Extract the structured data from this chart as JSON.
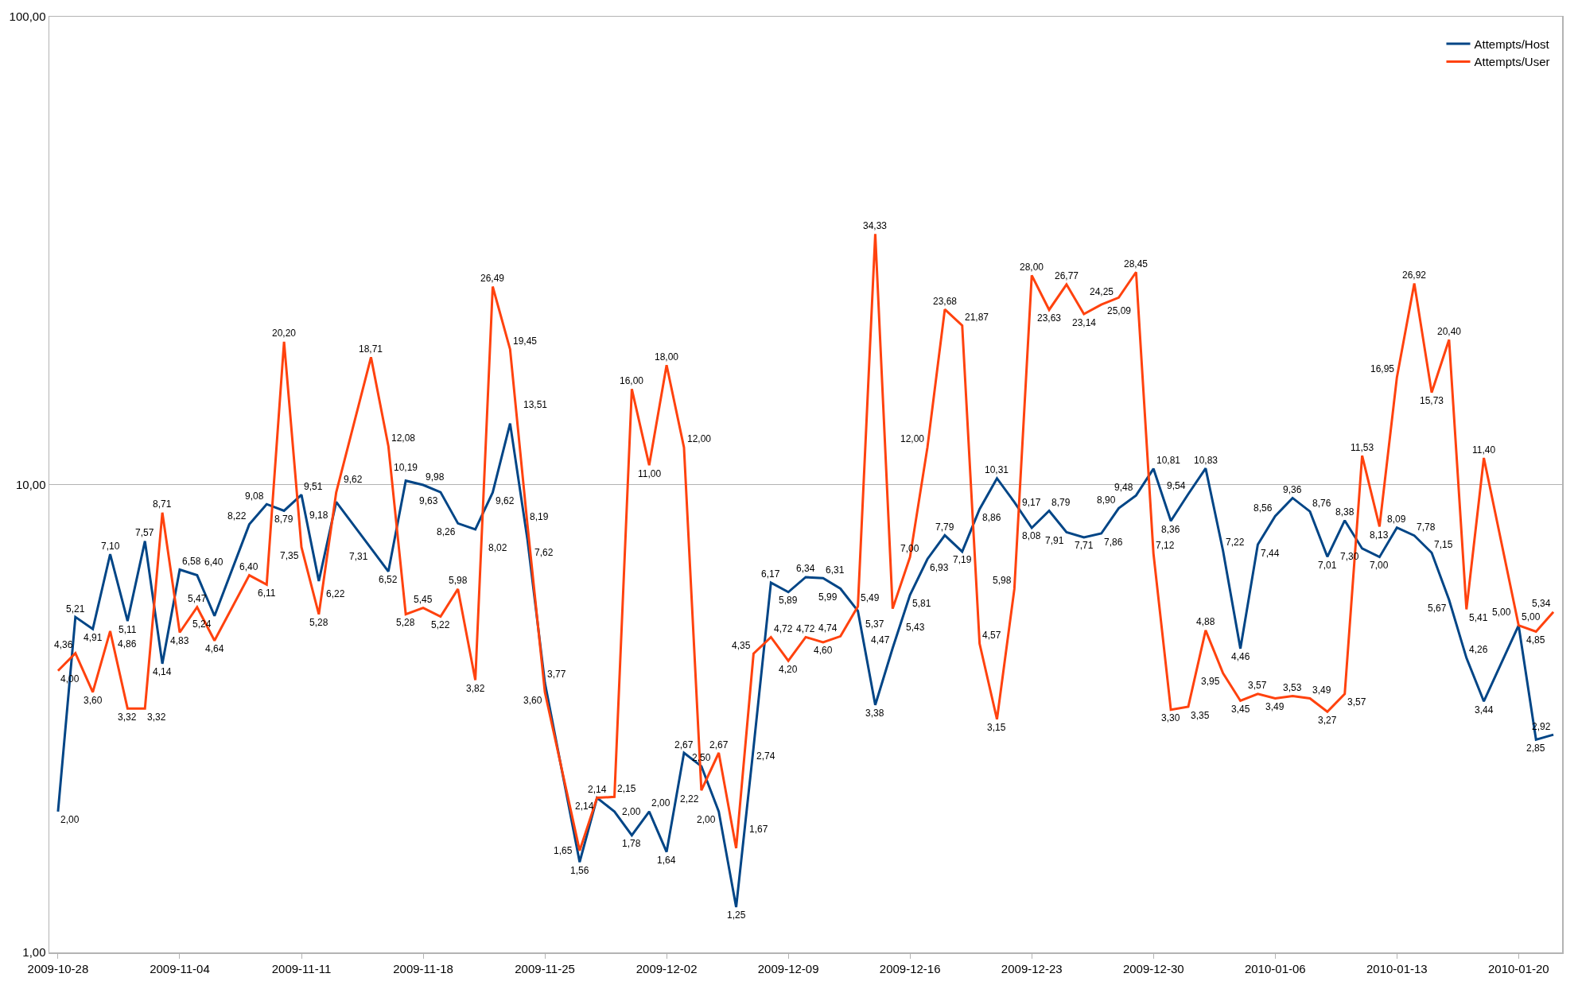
{
  "chart_data": {
    "type": "line",
    "log": "y",
    "grid": "y",
    "legend": "top right",
    "x": [
      "2009-10-28",
      "2009-10-29",
      "2009-10-30",
      "2009-10-31",
      "2009-11-01",
      "2009-11-02",
      "2009-11-03",
      "2009-11-04",
      "2009-11-05",
      "2009-11-06",
      "2009-11-08",
      "2009-11-09",
      "2009-11-10",
      "2009-11-11",
      "2009-11-12",
      "2009-11-13",
      "2009-11-15",
      "2009-11-16",
      "2009-11-17",
      "2009-11-18",
      "2009-11-19",
      "2009-11-20",
      "2009-11-21",
      "2009-11-22",
      "2009-11-23",
      "2009-11-24",
      "2009-11-25",
      "2009-11-27",
      "2009-11-28",
      "2009-11-29",
      "2009-11-30",
      "2009-12-01",
      "2009-12-02",
      "2009-12-03",
      "2009-12-04",
      "2009-12-05",
      "2009-12-06",
      "2009-12-07",
      "2009-12-08",
      "2009-12-09",
      "2009-12-10",
      "2009-12-11",
      "2009-12-12",
      "2009-12-13",
      "2009-12-14",
      "2009-12-15",
      "2009-12-16",
      "2009-12-17",
      "2009-12-18",
      "2009-12-19",
      "2009-12-20",
      "2009-12-21",
      "2009-12-22",
      "2009-12-23",
      "2009-12-24",
      "2009-12-25",
      "2009-12-26",
      "2009-12-27",
      "2009-12-28",
      "2009-12-29",
      "2009-12-30",
      "2009-12-31",
      "2010-01-01",
      "2010-01-02",
      "2010-01-03",
      "2010-01-04",
      "2010-01-05",
      "2010-01-06",
      "2010-01-07",
      "2010-01-08",
      "2010-01-09",
      "2010-01-10",
      "2010-01-11",
      "2010-01-12",
      "2010-01-13",
      "2010-01-14",
      "2010-01-15",
      "2010-01-16",
      "2010-01-17",
      "2010-01-18",
      "2010-01-20",
      "2010-01-21",
      "2010-01-22"
    ],
    "series": [
      {
        "name": "Attempts/Host",
        "color": "#004586",
        "values": [
          2.0,
          5.21,
          4.91,
          7.1,
          5.11,
          7.57,
          4.14,
          6.58,
          6.4,
          5.24,
          8.22,
          9.08,
          8.79,
          9.51,
          6.22,
          9.18,
          7.31,
          6.52,
          10.19,
          9.98,
          9.63,
          8.26,
          8.02,
          9.62,
          13.51,
          7.62,
          3.77,
          1.56,
          2.14,
          2.0,
          1.78,
          2.0,
          1.64,
          2.67,
          2.5,
          2.0,
          1.25,
          2.74,
          6.17,
          5.89,
          6.34,
          6.31,
          5.99,
          5.37,
          3.38,
          4.47,
          5.81,
          6.93,
          7.79,
          7.19,
          8.86,
          10.31,
          9.17,
          8.08,
          8.79,
          7.91,
          7.71,
          7.86,
          8.9,
          9.48,
          10.81,
          8.36,
          9.54,
          10.83,
          7.22,
          4.46,
          7.44,
          8.56,
          9.36,
          8.76,
          7.01,
          8.38,
          7.3,
          7.0,
          8.09,
          7.78,
          7.15,
          5.67,
          4.26,
          3.44,
          5.0,
          2.85,
          2.92
        ],
        "value_labels": [
          "2,00",
          "5,21",
          "4,91",
          "7,10",
          "5,11",
          "7,57",
          "4,14",
          "6,58",
          "6,40",
          "5,24",
          "8,22",
          "9,08",
          "8,79",
          "9,51",
          "6,22",
          "9,18",
          "7,31",
          "6,52",
          "10,19",
          "9,98",
          "9,63",
          "8,26",
          "8,02",
          "9,62",
          "13,51",
          "7,62",
          "3,77",
          "1,56",
          "2,14",
          "2,00",
          "1,78",
          "2,00",
          "1,64",
          "2,67",
          "2,50",
          "2,00",
          "1,25",
          "2,74",
          "6,17",
          "5,89",
          "6,34",
          "6,31",
          "5,99",
          "5,37",
          "3,38",
          "4,47",
          "5,81",
          "6,93",
          "7,79",
          "7,19",
          "8,86",
          "10,31",
          "9,17",
          "8,08",
          "8,79",
          "7,91",
          "7,71",
          "7,86",
          "8,90",
          "9,48",
          "10,81",
          "8,36",
          "9,54",
          "10,83",
          "7,22",
          "4,46",
          "7,44",
          "8,56",
          "9,36",
          "8,76",
          "7,01",
          "8,38",
          "7,30",
          "7,00",
          "8,09",
          "7,78",
          "7,15",
          "5,67",
          "4,26",
          "3,44",
          "5,00",
          "2,85",
          "2,92"
        ]
      },
      {
        "name": "Attempts/User",
        "color": "#ff420e",
        "values": [
          4.0,
          4.36,
          3.6,
          4.86,
          3.32,
          3.32,
          8.71,
          4.83,
          5.47,
          4.64,
          6.4,
          6.11,
          20.2,
          7.35,
          5.28,
          9.62,
          18.71,
          12.08,
          5.28,
          5.45,
          5.22,
          5.98,
          3.82,
          26.49,
          19.45,
          8.19,
          3.6,
          1.65,
          2.14,
          2.15,
          16.0,
          11.0,
          18.0,
          12.0,
          2.22,
          2.67,
          1.67,
          4.35,
          4.72,
          4.2,
          4.72,
          4.6,
          4.74,
          5.49,
          34.33,
          5.43,
          7.0,
          12.0,
          23.68,
          21.87,
          4.57,
          3.15,
          5.98,
          28.0,
          23.63,
          26.77,
          23.14,
          24.25,
          25.09,
          28.45,
          7.12,
          3.3,
          3.35,
          4.88,
          3.95,
          3.45,
          3.57,
          3.49,
          3.53,
          3.49,
          3.27,
          3.57,
          11.53,
          8.13,
          16.95,
          26.92,
          15.73,
          20.4,
          5.41,
          11.4,
          5.0,
          4.85,
          5.34
        ],
        "value_labels": [
          "4,00",
          "4,36",
          "3,60",
          "4,86",
          "3,32",
          "3,32",
          "8,71",
          "4,83",
          "5,47",
          "4,64",
          "6,40",
          "6,11",
          "20,20",
          "7,35",
          "5,28",
          "9,62",
          "18,71",
          "12,08",
          "5,28",
          "5,45",
          "5,22",
          "5,98",
          "3,82",
          "26,49",
          "19,45",
          "8,19",
          "3,60",
          "1,65",
          "2,14",
          "2,15",
          "16,00",
          "11,00",
          "18,00",
          "12,00",
          "2,22",
          "2,67",
          "1,67",
          "4,35",
          "4,72",
          "4,20",
          "4,72",
          "4,60",
          "4,74",
          "5,49",
          "34,33",
          "5,43",
          "7,00",
          "12,00",
          "23,68",
          "21,87",
          "4,57",
          "3,15",
          "5,98",
          "28,00",
          "23,63",
          "26,77",
          "23,14",
          "24,25",
          "25,09",
          "28,45",
          "7,12",
          "3,30",
          "3,35",
          "4,88",
          "3,95",
          "3,45",
          "3,57",
          "3,49",
          "3,53",
          "3,49",
          "3,27",
          "3,57",
          "11,53",
          "8,13",
          "16,95",
          "26,92",
          "15,73",
          "20,40",
          "5,41",
          "11,40",
          "5,00",
          "4,85",
          "5,34"
        ]
      }
    ],
    "xlim": [
      "2009-10-27T12:00",
      "2010-01-22T12:00"
    ],
    "xticks": [
      "2009-10-28",
      "2009-11-04",
      "2009-11-11",
      "2009-11-18",
      "2009-11-25",
      "2009-12-02",
      "2009-12-09",
      "2009-12-16",
      "2009-12-23",
      "2009-12-30",
      "2010-01-06",
      "2010-01-13",
      "2010-01-20"
    ],
    "ylim": [
      1,
      100
    ],
    "yticks": [
      {
        "value": 1,
        "label": "1,00"
      },
      {
        "value": 10,
        "label": "10,00"
      },
      {
        "value": 100,
        "label": "100,00"
      }
    ]
  }
}
